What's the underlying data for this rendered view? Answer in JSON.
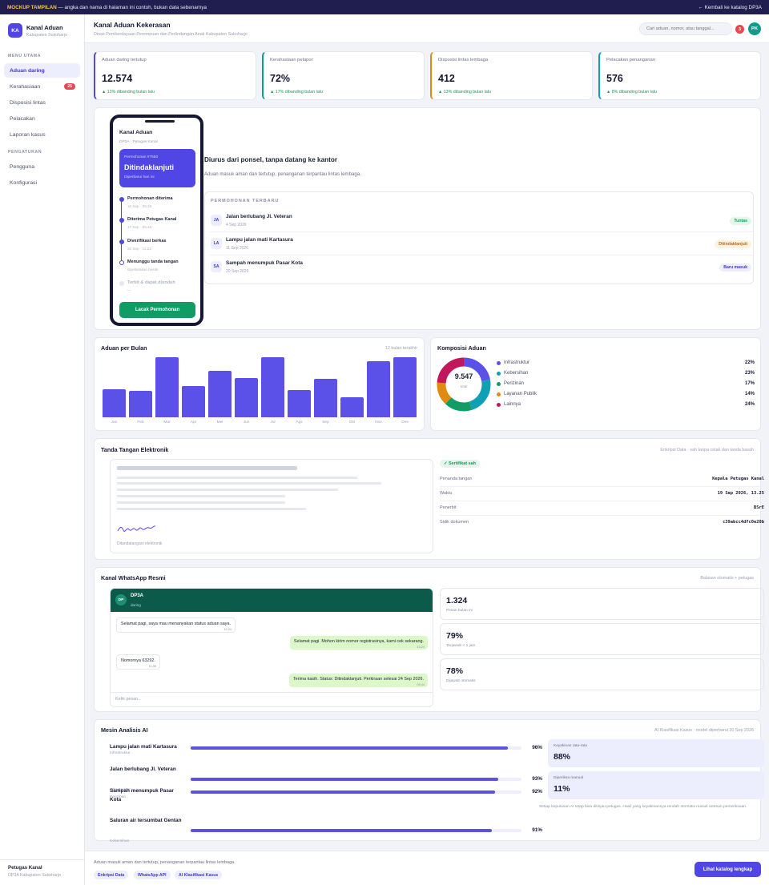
{
  "topbar": {
    "tag": "MOCKUP TAMPILAN",
    "note": " — angka dan nama di halaman ini contoh, bukan data sebenarnya",
    "back": "← Kembali ke katalog DP3A"
  },
  "brand": {
    "initials": "KA",
    "name": "Kanal Aduan",
    "sub": "Kabupaten Sukoharjo"
  },
  "nav": {
    "menu_head": "MENU UTAMA",
    "items": [
      {
        "label": "Aduan daring"
      },
      {
        "label": "Kerahasiaan",
        "badge": "25"
      },
      {
        "label": "Disposisi lintas"
      },
      {
        "label": "Pelacakan"
      },
      {
        "label": "Laporan kasus"
      }
    ],
    "settings_head": "PENGATURAN",
    "settings": [
      {
        "label": "Pengguna"
      },
      {
        "label": "Konfigurasi"
      }
    ]
  },
  "sidebar_footer": {
    "name": "Petugas Kanal",
    "sub": "DP3A Kabupaten Sukoharjo"
  },
  "header": {
    "title": "Kanal Aduan Kekerasan",
    "subtitle": "Dinas Pemberdayaan Perempuan dan Perlindungan Anak Kabupaten Sukoharjo",
    "search_placeholder": "Cari aduan, nomor, atau tanggal...",
    "notif_count": "3",
    "avatar": "PK"
  },
  "stats": [
    {
      "label": "Aduan daring tertutup",
      "value": "12.574",
      "delta": "▲ 13% dibanding bulan lalu",
      "color": "#4f46e5"
    },
    {
      "label": "Kerahasiaan pelapor",
      "value": "72%",
      "delta": "▲ 17% dibanding bulan lalu",
      "color": "#0f9d8a"
    },
    {
      "label": "Disposisi lintas lembaga",
      "value": "412",
      "delta": "▲ 13% dibanding bulan lalu",
      "color": "#e08a12"
    },
    {
      "label": "Pelacakan penanganan",
      "value": "576",
      "delta": "▲ 8% dibanding bulan lalu",
      "color": "#0fa0b4"
    }
  ],
  "phone": {
    "title": "Kanal Aduan",
    "sub": "DP3A · Petugas Kanal",
    "card": {
      "num": "Permohonan #7550",
      "status": "Ditindaklanjuti",
      "updated": "Diperbarui hari ini"
    },
    "timeline": [
      {
        "title": "Permohonan diterima",
        "date": "16 Sep · 09.28"
      },
      {
        "title": "Diterima Petugas Kanal",
        "date": "17 Sep · 09.48"
      },
      {
        "title": "Diverifikasi berkas",
        "date": "20 Sep · 11.22"
      },
      {
        "title": "Menunggu tanda tangan",
        "date": "diperkirakan besok"
      },
      {
        "title": "Terbit & dapat diunduh",
        "date": "—"
      }
    ],
    "button": "Lacak Permohonan"
  },
  "hero": {
    "title": "Diurus dari ponsel, tanpa datang ke kantor",
    "desc": "Aduan masuk aman dan tertutup, penanganan terpantau lintas lembaga."
  },
  "recent": {
    "head": "PERMOHONAN TERBARU",
    "rows": [
      {
        "initials": "JA",
        "name": "Jalan berlubang Jl. Veteran",
        "date": "4 Sep 2026",
        "status": "Tuntas",
        "fg": "#0f9d58",
        "bg": "#e3f6ec"
      },
      {
        "initials": "LA",
        "name": "Lampu jalan mati Kartasura",
        "date": "11 Sep 2026",
        "status": "Ditindaklanjuti",
        "fg": "#c26a0a",
        "bg": "#fdf1e0"
      },
      {
        "initials": "SA",
        "name": "Sampah menumpuk Pasar Kota",
        "date": "20 Sep 2026",
        "status": "Baru masuk",
        "fg": "#4338ca",
        "bg": "#eceefe"
      }
    ]
  },
  "monthly": {
    "title": "Aduan per Bulan",
    "meta": "12 bulan terakhir"
  },
  "composition": {
    "title": "Komposisi Aduan",
    "total": "9.547",
    "total_label": "total"
  },
  "chart_data": [
    {
      "type": "bar",
      "categories": [
        "Jan",
        "Feb",
        "Mar",
        "Apr",
        "Mei",
        "Jun",
        "Jul",
        "Ags",
        "Sep",
        "Okt",
        "Nov",
        "Des"
      ],
      "values": [
        47,
        44,
        100,
        52,
        77,
        65,
        100,
        46,
        64,
        34,
        93,
        100
      ],
      "ylim": [
        0,
        100
      ]
    },
    {
      "type": "pie",
      "categories": [
        "Infrastruktur",
        "Kebersihan",
        "Perizinan",
        "Layanan Publik",
        "Lainnya"
      ],
      "values": [
        22,
        23,
        17,
        14,
        24
      ],
      "colors": [
        "#5b50e8",
        "#0fa0b4",
        "#119c66",
        "#e08a12",
        "#c2185b"
      ],
      "legend": "right"
    }
  ],
  "signature": {
    "title": "Tanda Tangan Elektronik",
    "meta": "Enkripsi Data · sah tanpa cetak dan tanda basah",
    "doc_caption": "Ditandatangani elektronik",
    "badge": "✓ Sertifikat sah",
    "rows": [
      {
        "k": "Penanda tangan",
        "v": "Kepala Petugas Kanal"
      },
      {
        "k": "Waktu",
        "v": "19 Sep 2026, 13.25"
      },
      {
        "k": "Penerbit",
        "v": "BSrE"
      },
      {
        "k": "Sidik dokumen",
        "v": "c39abcc4dfc0e20b"
      }
    ]
  },
  "whatsapp": {
    "title": "Kanal WhatsApp Resmi",
    "meta": "Balasan otomatis + petugas",
    "contact": {
      "initials": "DP",
      "name": "DP3A",
      "status": "daring"
    },
    "messages": [
      {
        "dir": "in",
        "text": "Selamat pagi, saya mau menanyakan status aduan saya.",
        "time": "13.24"
      },
      {
        "dir": "out",
        "text": "Selamat pagi. Mohon kirim nomor registrasinya, kami cek sekarang.",
        "time": "13.24"
      },
      {
        "dir": "in",
        "text": "Nomornya 63292.",
        "time": "11.56"
      },
      {
        "dir": "out",
        "text": "Terima kasih. Status: Ditindaklanjuti. Perkiraan selesai 24 Sep 2026.",
        "time": "09.44"
      }
    ],
    "input_placeholder": "Ketik pesan...",
    "stats": [
      {
        "value": "1.324",
        "label": "Pesan bulan ini"
      },
      {
        "value": "79%",
        "label": "Terjawab < 1 jam"
      },
      {
        "value": "78%",
        "label": "Dijawab otomatis"
      }
    ]
  },
  "ai": {
    "title": "Mesin Analisis AI",
    "meta": "AI Klasifikasi Kasus · model diperbarui 20 Sep 2026",
    "rows": [
      {
        "name": "Lampu jalan mati Kartasura",
        "cat": "Infrastruktur",
        "pct": 96,
        "pct_label": "96%"
      },
      {
        "name": "Jalan berlubang Jl. Veteran",
        "cat": "Infrastruktur",
        "pct": 93,
        "pct_label": "93%"
      },
      {
        "name": "Sampah menumpuk Pasar Kota",
        "cat": "Perizinan",
        "pct": 92,
        "pct_label": "92%"
      },
      {
        "name": "Saluran air tersumbat Gentan",
        "cat": "Kebersihan",
        "pct": 91,
        "pct_label": "91%"
      }
    ],
    "boxes": [
      {
        "label": "Keyakinan rata-rata",
        "value": "88%"
      },
      {
        "label": "Diperiksa manual",
        "value": "11%"
      }
    ],
    "note": "Setiap keputusan AI tetap bisa ditinjau petugas. Hasil yang keyakinannya rendah otomatis masuk antrean pemeriksaan."
  },
  "footer": {
    "text": "Aduan masuk aman dan tertutup, penanganan terpantau lintas lembaga.",
    "chips": [
      "Enkripsi Data",
      "WhatsApp API",
      "AI Klasifikasi Kasus"
    ],
    "button": "Lihat katalog lengkap"
  }
}
